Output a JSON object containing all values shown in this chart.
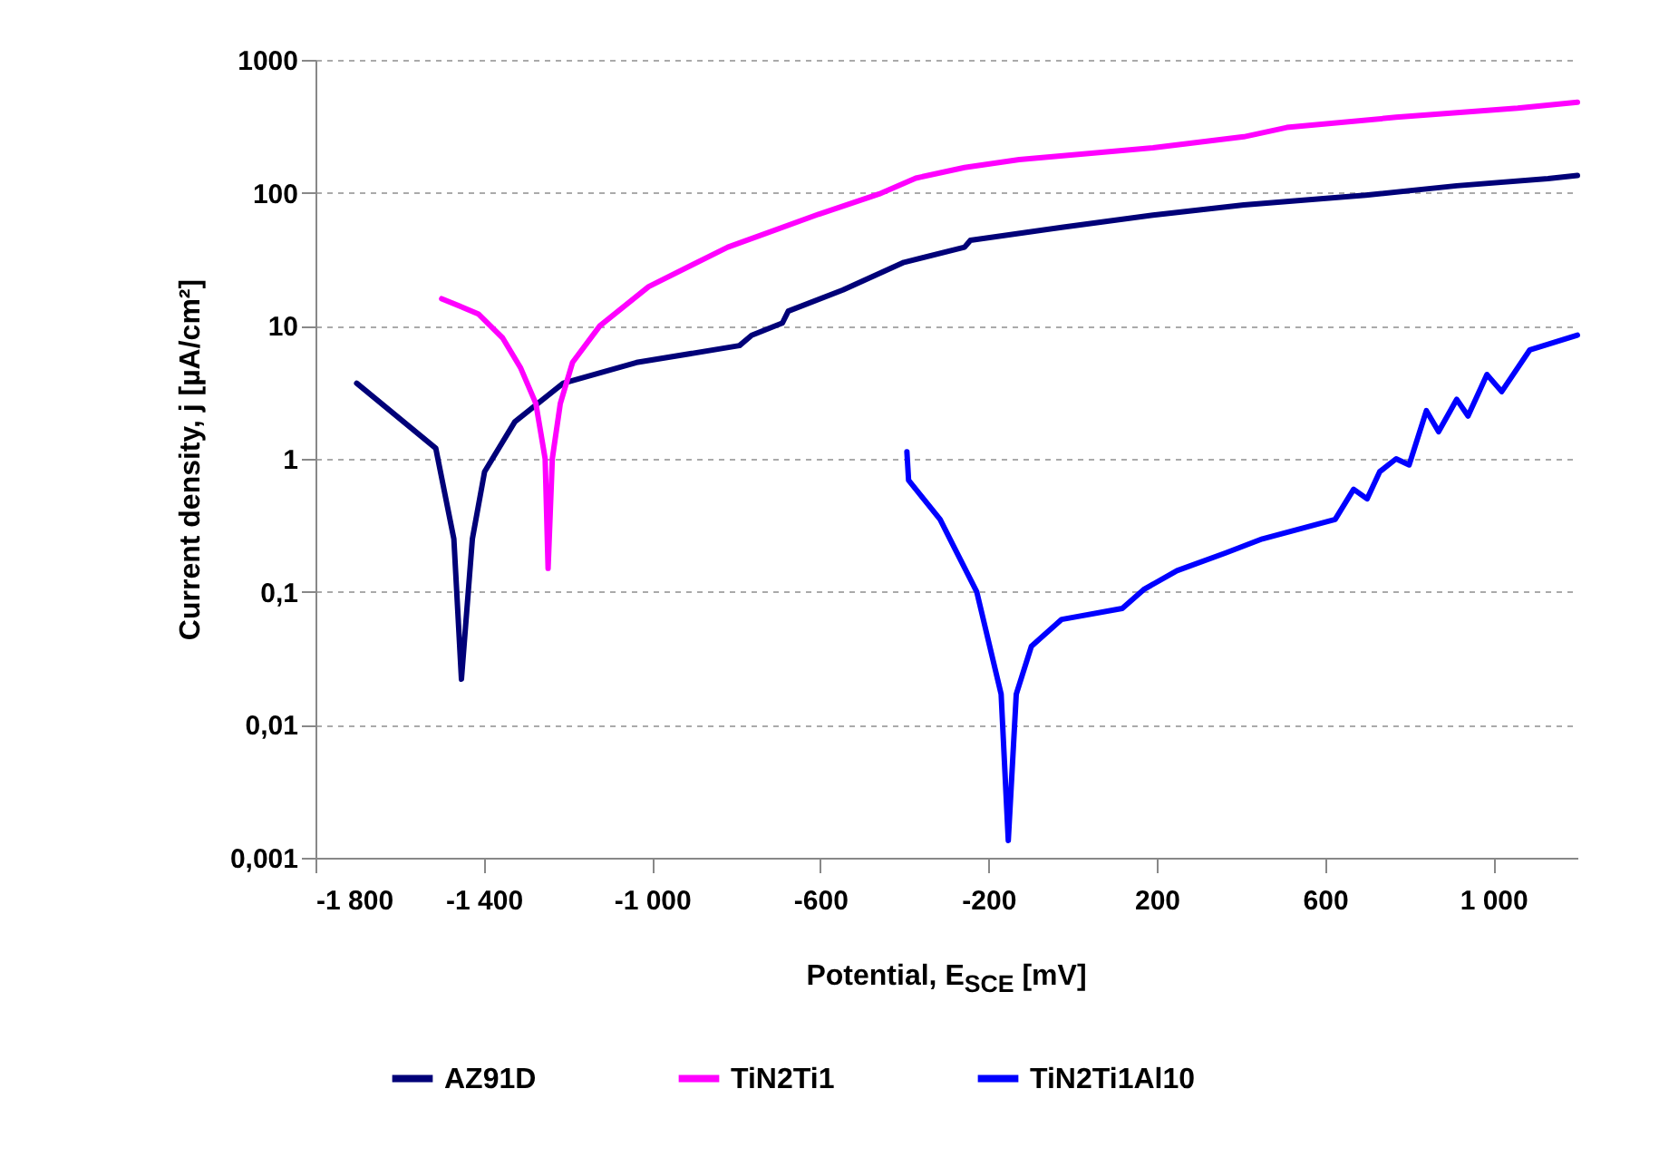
{
  "chart_data": {
    "type": "line",
    "xlabel": "Potential, E$_{SCE}$ [mV]",
    "ylabel": "Current density, j [µA/cm²]",
    "xlim": [
      -1800,
      1200
    ],
    "xticks": [
      {
        "value": -1800,
        "label": "-1 800"
      },
      {
        "value": -1400,
        "label": "-1 400"
      },
      {
        "value": -1000,
        "label": "-1 000"
      },
      -600,
      -200,
      200,
      600,
      {
        "value": 1000,
        "label": "1 000"
      }
    ],
    "ylim": [
      0.001,
      1000
    ],
    "yticks": [
      {
        "value": 0.001,
        "label": "0,001"
      },
      {
        "value": 0.01,
        "label": "0,01"
      },
      {
        "value": 0.1,
        "label": "0,1"
      },
      1,
      10,
      100,
      1000
    ],
    "log": "y",
    "grid": "y",
    "legend": "bottom",
    "marker": "none",
    "line_style": "solid",
    "series": [
      {
        "name": "AZ91D",
        "color": "#000078",
        "x": [
          -1702,
          -1514,
          -1471,
          -1453,
          -1427,
          -1398,
          -1326,
          -1211,
          -1037,
          -792,
          -763,
          -690,
          -676,
          -546,
          -401,
          -257,
          -243,
          -26,
          191,
          407,
          697,
          913,
          1130,
          1200
        ],
        "values": [
          3.7,
          1.2,
          0.25,
          0.022,
          0.25,
          0.8,
          1.9,
          3.7,
          5.3,
          7.1,
          8.5,
          10.5,
          12.9,
          18.6,
          30,
          39,
          44,
          55,
          68,
          81,
          96,
          113,
          128,
          135
        ]
      },
      {
        "name": "TiN2Ti1",
        "color": "#ff00ff",
        "x": [
          -1500,
          -1413,
          -1355,
          -1312,
          -1276,
          -1254,
          -1247,
          -1237,
          -1218,
          -1189,
          -1124,
          -1008,
          -820,
          -604,
          -460,
          -373,
          -257,
          -127,
          191,
          407,
          509,
          769,
          1058,
          1200
        ],
        "values": [
          16,
          12.3,
          8.1,
          4.8,
          2.6,
          1.0,
          0.15,
          1.0,
          2.6,
          5.3,
          10,
          19.7,
          39,
          69,
          98,
          129,
          155,
          178,
          218,
          264,
          310,
          370,
          433,
          480
        ]
      },
      {
        "name": "TiN2Ti1Al10",
        "color": "#0000ff",
        "x": [
          -394,
          -390,
          -315,
          -286,
          -228,
          -170,
          -153,
          -134,
          -98,
          -26,
          118,
          169,
          248,
          364,
          451,
          624,
          668,
          700,
          730,
          769,
          800,
          841,
          870,
          913,
          940,
          985,
          1020,
          1087,
          1200
        ],
        "values": [
          1.13,
          0.69,
          0.35,
          0.23,
          0.1,
          0.017,
          0.00135,
          0.017,
          0.039,
          0.062,
          0.075,
          0.104,
          0.144,
          0.196,
          0.25,
          0.35,
          0.59,
          0.5,
          0.8,
          1.0,
          0.9,
          2.3,
          1.6,
          2.8,
          2.1,
          4.3,
          3.2,
          6.6,
          8.5
        ]
      }
    ]
  }
}
